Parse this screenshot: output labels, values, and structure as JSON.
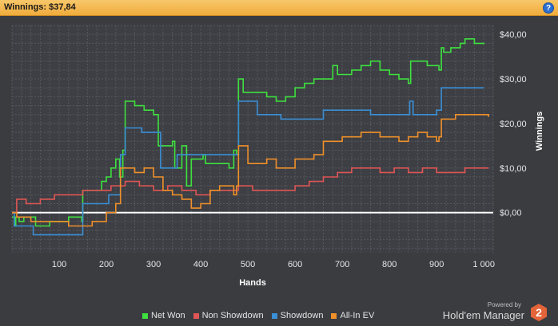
{
  "header": {
    "title": "Winnings: $37,84",
    "help_label": "?"
  },
  "branding": {
    "powered_by": "Powered by",
    "name": "Hold'em Manager",
    "logo_mark": "2"
  },
  "colors": {
    "background": "#3a3c40",
    "grid": "#55585d",
    "zero_line": "#ffffff",
    "net_won": "#3fe03f",
    "non_showdown": "#e05555",
    "showdown": "#3a8fd6",
    "allin_ev": "#f0902a"
  },
  "chart_data": {
    "type": "line",
    "xlabel": "Hands",
    "ylabel": "Winnings",
    "xlim": [
      0,
      1020
    ],
    "ylim": [
      -9,
      42
    ],
    "x_ticks": [
      100,
      200,
      300,
      400,
      500,
      600,
      700,
      800,
      900,
      1000
    ],
    "x_tick_labels": [
      "100",
      "200",
      "300",
      "400",
      "500",
      "600",
      "700",
      "800",
      "900",
      "1 000"
    ],
    "y_ticks": [
      0,
      10,
      20,
      30,
      40
    ],
    "y_tick_labels": [
      "$0,00",
      "$10,00",
      "$20,00",
      "$30,00",
      "$40,00"
    ],
    "grid": true,
    "legend_position": "bottom",
    "series": [
      {
        "name": "Net Won",
        "color": "#3fe03f",
        "x": [
          0,
          5,
          8,
          10,
          15,
          25,
          40,
          50,
          60,
          80,
          100,
          120,
          140,
          148,
          150,
          170,
          190,
          200,
          210,
          220,
          228,
          235,
          240,
          245,
          260,
          280,
          300,
          310,
          315,
          330,
          340,
          345,
          360,
          370,
          375,
          380,
          395,
          405,
          410,
          420,
          440,
          460,
          470,
          476,
          480,
          490,
          500,
          510,
          520,
          540,
          560,
          580,
          600,
          620,
          640,
          660,
          680,
          690,
          700,
          720,
          740,
          760,
          780,
          800,
          820,
          840,
          845,
          860,
          880,
          900,
          905,
          910,
          915,
          930,
          950,
          960,
          980,
          1000
        ],
        "y": [
          -1,
          -3,
          -1,
          -1,
          -2,
          -1,
          -1,
          -3,
          -3,
          -2,
          -2,
          -1,
          -1,
          -2,
          5,
          5,
          7,
          8,
          10,
          12,
          8,
          14,
          25,
          25,
          24,
          23,
          22,
          15,
          15,
          15,
          16,
          10,
          15,
          6,
          6,
          12,
          12,
          13,
          11,
          11,
          11,
          10,
          14,
          13,
          30,
          27,
          27,
          27,
          27,
          26,
          25,
          26,
          28,
          29,
          30,
          30,
          33,
          31,
          31,
          32,
          33,
          34,
          32,
          31,
          30,
          29,
          34,
          34,
          33,
          33,
          32,
          37,
          36,
          37,
          38,
          39,
          38,
          37.8
        ]
      },
      {
        "name": "Non Showdown",
        "color": "#e05555",
        "x": [
          0,
          10,
          30,
          60,
          90,
          120,
          150,
          180,
          210,
          240,
          270,
          300,
          330,
          360,
          390,
          420,
          450,
          480,
          510,
          540,
          570,
          600,
          630,
          660,
          690,
          720,
          750,
          780,
          810,
          840,
          870,
          900,
          930,
          960,
          990,
          1010
        ],
        "y": [
          0,
          3,
          2,
          3,
          4,
          4,
          5,
          5,
          6,
          7,
          6,
          5,
          6,
          5,
          4,
          5,
          5,
          6,
          5,
          5,
          5,
          6,
          7,
          8,
          9,
          10,
          10,
          9,
          10,
          9,
          10,
          9,
          9,
          10,
          10,
          10
        ]
      },
      {
        "name": "Showdown",
        "color": "#3a8fd6",
        "x": [
          0,
          5,
          40,
          45,
          148,
          150,
          200,
          205,
          228,
          230,
          240,
          250,
          275,
          290,
          310,
          315,
          340,
          350,
          400,
          430,
          476,
          480,
          500,
          520,
          540,
          570,
          600,
          620,
          640,
          660,
          700,
          740,
          760,
          800,
          840,
          843,
          850,
          900,
          903,
          910,
          913,
          950,
          1000
        ],
        "y": [
          0,
          -3,
          -3,
          -5,
          -5,
          2,
          2,
          4,
          4,
          13,
          19,
          19,
          18,
          18,
          18,
          10,
          10,
          13,
          13,
          13,
          13,
          25,
          25,
          22,
          22,
          21,
          21,
          21,
          21,
          23,
          23,
          23,
          22,
          22,
          22,
          25,
          22,
          23,
          23,
          28,
          28,
          28,
          28
        ]
      },
      {
        "name": "All-In EV",
        "color": "#f0902a",
        "x": [
          0,
          10,
          40,
          80,
          120,
          150,
          170,
          200,
          220,
          230,
          240,
          260,
          280,
          300,
          320,
          340,
          360,
          380,
          400,
          420,
          440,
          460,
          470,
          476,
          480,
          500,
          540,
          560,
          600,
          620,
          640,
          660,
          680,
          700,
          720,
          740,
          760,
          780,
          800,
          820,
          840,
          860,
          880,
          900,
          905,
          910,
          940,
          960,
          980,
          1010
        ],
        "y": [
          0,
          -1,
          -2,
          -2,
          -3,
          -3,
          -2,
          0,
          2,
          10,
          10,
          9,
          10,
          8,
          5,
          4,
          3,
          1,
          2,
          5,
          6,
          6,
          4,
          6,
          15,
          11,
          12,
          10,
          12,
          12,
          13,
          16,
          16,
          17,
          17,
          18,
          18,
          17,
          17,
          16,
          17,
          18,
          17,
          16,
          17,
          21,
          22,
          22,
          22,
          21.5
        ]
      }
    ]
  },
  "legend": [
    {
      "label": "Net Won",
      "color": "#3fe03f"
    },
    {
      "label": "Non Showdown",
      "color": "#e05555"
    },
    {
      "label": "Showdown",
      "color": "#3a8fd6"
    },
    {
      "label": "All-In EV",
      "color": "#f0902a"
    }
  ]
}
